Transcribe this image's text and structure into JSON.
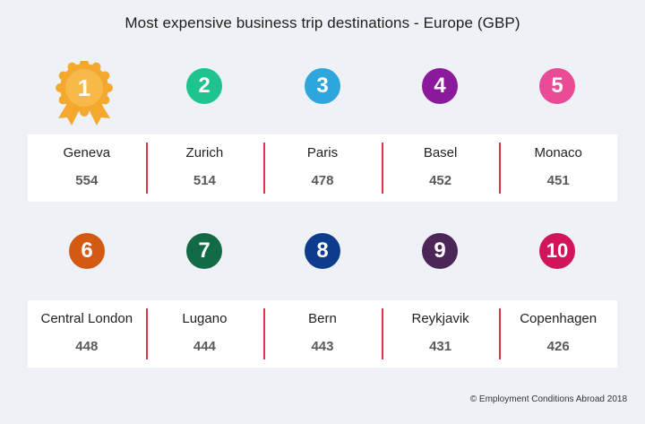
{
  "title": "Most expensive business trip destinations - Europe (GBP)",
  "ranks": [
    {
      "rank": "1",
      "city": "Geneva",
      "value": "554",
      "color": "#f4a82e"
    },
    {
      "rank": "2",
      "city": "Zurich",
      "value": "514",
      "color": "#1fc38e"
    },
    {
      "rank": "3",
      "city": "Paris",
      "value": "478",
      "color": "#2ea6dd"
    },
    {
      "rank": "4",
      "city": "Basel",
      "value": "452",
      "color": "#8a1a9b"
    },
    {
      "rank": "5",
      "city": "Monaco",
      "value": "451",
      "color": "#e94b96"
    },
    {
      "rank": "6",
      "city": "Central London",
      "value": "448",
      "color": "#d45a12"
    },
    {
      "rank": "7",
      "city": "Lugano",
      "value": "444",
      "color": "#136a47"
    },
    {
      "rank": "8",
      "city": "Bern",
      "value": "443",
      "color": "#0d3c8c"
    },
    {
      "rank": "9",
      "city": "Reykjavik",
      "value": "431",
      "color": "#4b2656"
    },
    {
      "rank": "10",
      "city": "Copenhagen",
      "value": "426",
      "color": "#d2145a"
    }
  ],
  "footer": "© Employment Conditions Abroad 2018"
}
